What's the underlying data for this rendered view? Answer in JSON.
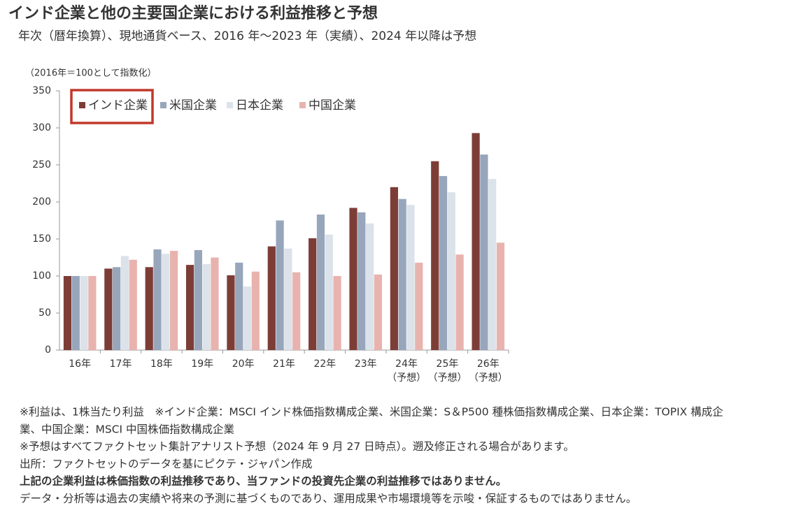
{
  "chart_data": {
    "type": "bar",
    "title": "インド企業と他の主要国企業における利益推移と予想",
    "subtitle": "年次（暦年換算）、現地通貨ベース、2016 年～2023 年（実績）、2024 年以降は予想",
    "y_label": "（2016年＝100として指数化）",
    "categories": [
      [
        "16年"
      ],
      [
        "17年"
      ],
      [
        "18年"
      ],
      [
        "19年"
      ],
      [
        "20年"
      ],
      [
        "21年"
      ],
      [
        "22年"
      ],
      [
        "23年"
      ],
      [
        "24年",
        "（予想）"
      ],
      [
        "25年",
        "（予想）"
      ],
      [
        "26年",
        "（予想）"
      ]
    ],
    "series": [
      {
        "name": "インド企業",
        "color": "#7d3d37",
        "values": [
          100,
          110,
          112,
          115,
          101,
          140,
          151,
          192,
          220,
          255,
          293
        ]
      },
      {
        "name": "米国企業",
        "color": "#97a6bb",
        "values": [
          100,
          112,
          136,
          135,
          118,
          175,
          183,
          186,
          204,
          235,
          264
        ]
      },
      {
        "name": "日本企業",
        "color": "#dce2ea",
        "values": [
          100,
          127,
          130,
          116,
          86,
          137,
          156,
          171,
          196,
          213,
          231
        ]
      },
      {
        "name": "中国企業",
        "color": "#e8b3ae",
        "values": [
          100,
          122,
          134,
          125,
          106,
          105,
          100,
          102,
          118,
          129,
          145
        ]
      }
    ],
    "ylim": [
      0,
      350
    ],
    "yticks": [
      0,
      50,
      100,
      150,
      200,
      250,
      300,
      350
    ],
    "grid": false,
    "legend": "top-left",
    "highlight_color": "#c0392b",
    "notes": [
      {
        "text": "※利益は、1株当たり利益　※インド企業：MSCI インド株価指数構成企業、米国企業：S＆P500 種株価指数構成企業、日本企業：TOPIX 構成企",
        "color": "#222"
      },
      {
        "text": "業、中国企業：MSCI 中国株価指数構成企業",
        "color": "#222"
      },
      {
        "text": "※予想はすべてファクトセット集計アナリスト予想（2024 年 9 月 27 日時点）。遡及修正される場合があります。",
        "color": "#222"
      },
      {
        "text": "出所：ファクトセットのデータを基にピクテ・ジャパン作成",
        "color": "#222"
      },
      {
        "text": "上記の企業利益は株価指数の利益推移であり、当ファンドの投資先企業の利益推移ではありません。",
        "color": "#e0201b",
        "bold": true
      },
      {
        "text": "データ・分析等は過去の実績や将来の予測に基づくものであり、運用成果や市場環境等を示唆・保証するものではありません。",
        "color": "#222"
      }
    ]
  }
}
